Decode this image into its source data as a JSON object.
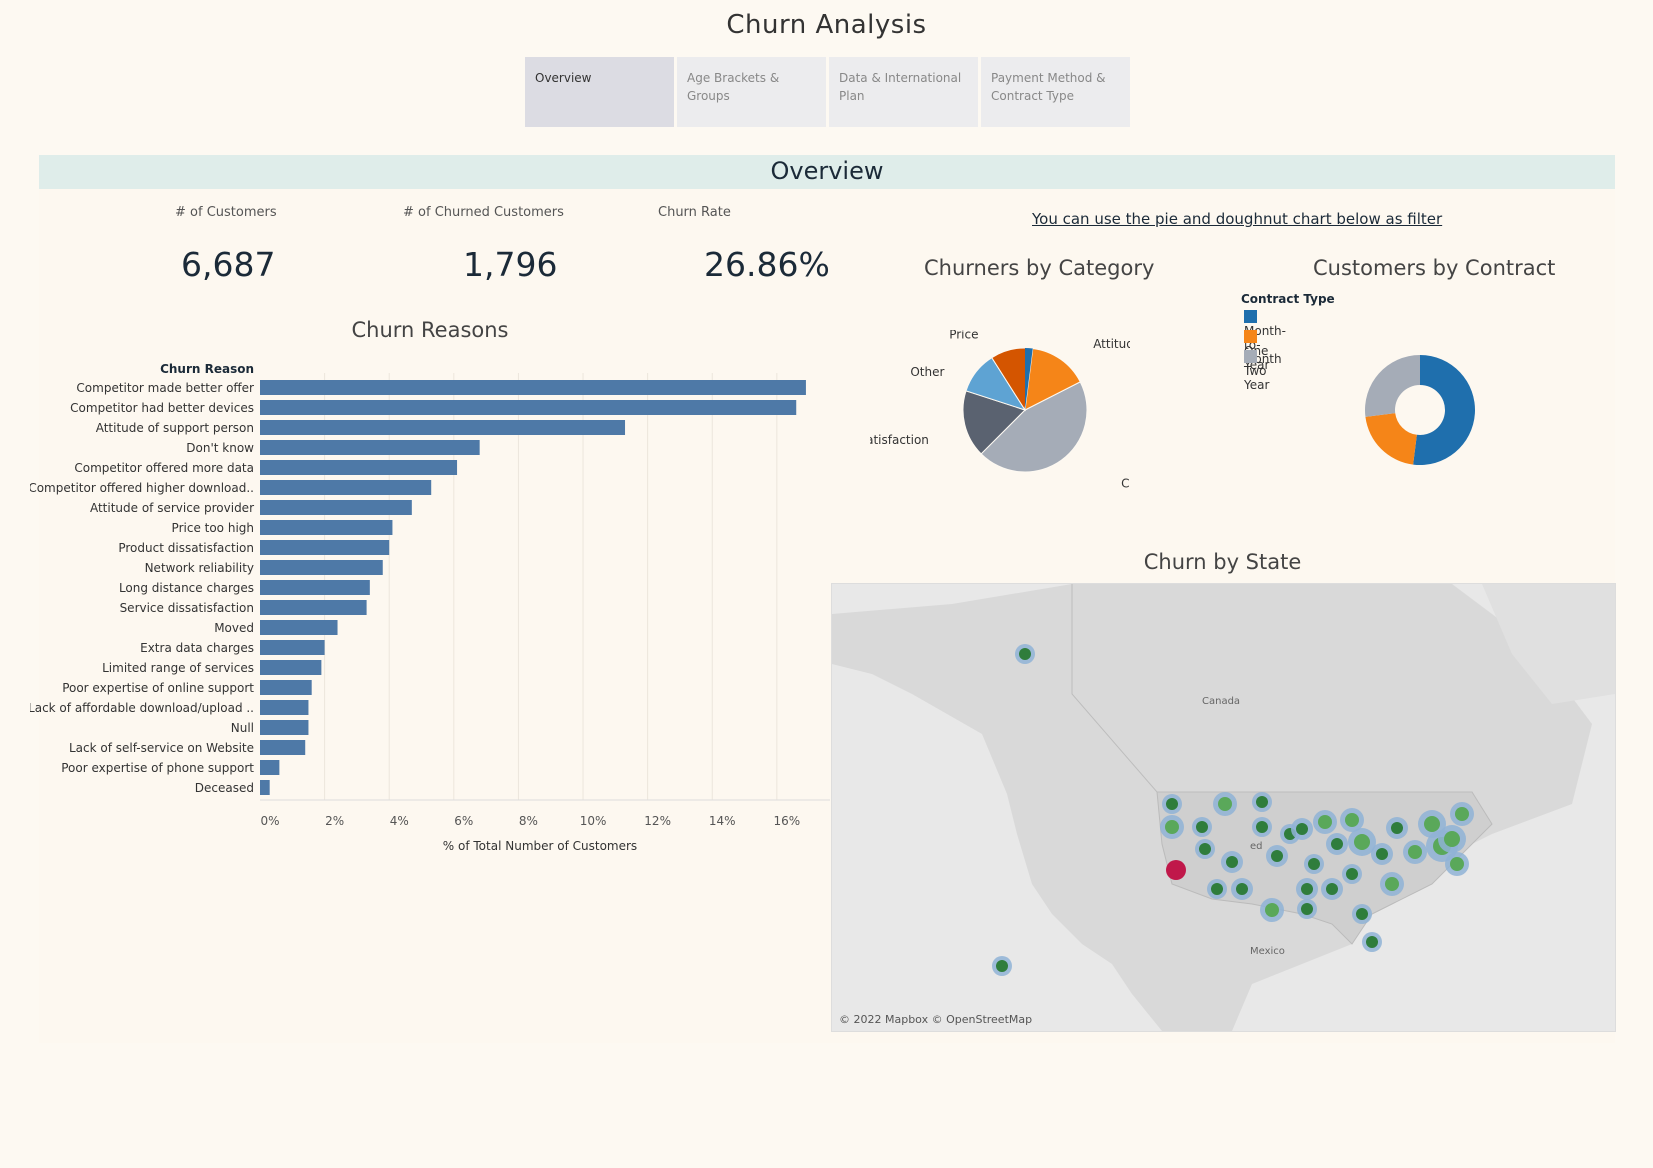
{
  "title": "Churn Analysis",
  "tabs": [
    {
      "label": "Overview",
      "active": true
    },
    {
      "label": "Age Brackets & Groups",
      "active": false
    },
    {
      "label": "Data & International Plan",
      "active": false
    },
    {
      "label": "Payment Method & Contract Type",
      "active": false
    }
  ],
  "section_title": "Overview",
  "kpis": [
    {
      "label": "# of Customers",
      "value": "6,687"
    },
    {
      "label": "# of Churned Customers",
      "value": "1,796"
    },
    {
      "label": "Churn Rate",
      "value": "26.86%"
    }
  ],
  "filter_note": "You can use the pie and doughnut chart below as filter",
  "colors": {
    "bar": "#4e79a7",
    "month_to_month": "#1f6fad",
    "one_year": "#f58518",
    "two_year": "#a5acb7",
    "accent_band": "#dfedea",
    "highlight_state": "#c0184a"
  },
  "map": {
    "title": "Churn by State",
    "labels": {
      "canada": "Canada",
      "mexico": "Mexico",
      "us_partial": "ed"
    },
    "attribution": "© 2022 Mapbox © OpenStreetMap"
  },
  "chart_data": [
    {
      "type": "bar",
      "orientation": "horizontal",
      "title": "Churn Reasons",
      "category_header": "Churn Reason",
      "xlabel": "% of Total Number of Customers",
      "x_ticks": [
        "0%",
        "2%",
        "4%",
        "6%",
        "8%",
        "10%",
        "12%",
        "14%",
        "16%"
      ],
      "xlim": [
        0,
        17.8
      ],
      "grid": true,
      "categories": [
        "Competitor made better offer",
        "Competitor had better devices",
        "Attitude of support person",
        "Don't know",
        "Competitor offered more data",
        "Competitor offered higher download..",
        "Attitude of service provider",
        "Price too high",
        "Product dissatisfaction",
        "Network reliability",
        "Long distance charges",
        "Service dissatisfaction",
        "Moved",
        "Extra data charges",
        "Limited range of services",
        "Poor expertise of online support",
        "Lack of affordable download/upload ..",
        "Null",
        "Lack of self-service on Website",
        "Poor expertise of phone support",
        "Deceased"
      ],
      "values": [
        16.9,
        16.6,
        11.3,
        6.8,
        6.1,
        5.3,
        4.7,
        4.1,
        4.0,
        3.8,
        3.4,
        3.3,
        2.4,
        2.0,
        1.9,
        1.6,
        1.5,
        1.5,
        1.4,
        0.6,
        0.3
      ]
    },
    {
      "type": "pie",
      "title": "Churners by Category",
      "labels": [
        "Competitor",
        "Dissatisfaction",
        "Other",
        "Price",
        "Attitude"
      ],
      "values": [
        45.0,
        17.5,
        11.0,
        11.0,
        15.5
      ],
      "colors": [
        "#a5acb7",
        "#5a6270",
        "#5ea3d3",
        "#d45500",
        "#f58518"
      ]
    },
    {
      "type": "pie",
      "style": "doughnut",
      "title": "Customers by Contract",
      "legend_title": "Contract Type",
      "legend_position": "top-left",
      "labels": [
        "Month-to-Month",
        "One Year",
        "Two Year"
      ],
      "values": [
        52,
        21,
        27
      ],
      "colors": [
        "#1f6fad",
        "#f58518",
        "#a5acb7"
      ]
    }
  ]
}
